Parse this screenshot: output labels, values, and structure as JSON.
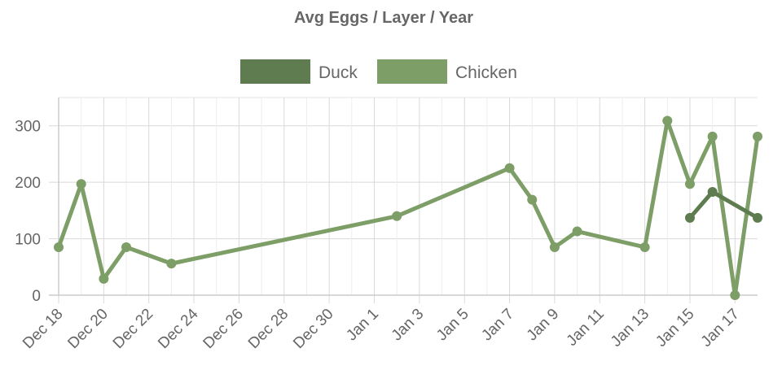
{
  "chart_data": {
    "type": "line",
    "title": "Avg Eggs / Layer / Year",
    "xlabel": "",
    "ylabel": "",
    "ylim": [
      0,
      350
    ],
    "y_ticks": [
      0,
      100,
      200,
      300
    ],
    "x_range": [
      "2020-12-18",
      "2021-01-18"
    ],
    "x_ticks": [
      {
        "date": "2020-12-18",
        "label": "Dec 18"
      },
      {
        "date": "2020-12-20",
        "label": "Dec 20"
      },
      {
        "date": "2020-12-22",
        "label": "Dec 22"
      },
      {
        "date": "2020-12-24",
        "label": "Dec 24"
      },
      {
        "date": "2020-12-26",
        "label": "Dec 26"
      },
      {
        "date": "2020-12-28",
        "label": "Dec 28"
      },
      {
        "date": "2020-12-30",
        "label": "Dec 30"
      },
      {
        "date": "2021-01-01",
        "label": "Jan 1"
      },
      {
        "date": "2021-01-03",
        "label": "Jan 3"
      },
      {
        "date": "2021-01-05",
        "label": "Jan 5"
      },
      {
        "date": "2021-01-07",
        "label": "Jan 7"
      },
      {
        "date": "2021-01-09",
        "label": "Jan 9"
      },
      {
        "date": "2021-01-11",
        "label": "Jan 11"
      },
      {
        "date": "2021-01-13",
        "label": "Jan 13"
      },
      {
        "date": "2021-01-15",
        "label": "Jan 15"
      },
      {
        "date": "2021-01-17",
        "label": "Jan 17"
      }
    ],
    "grid": true,
    "legend_position": "top-center",
    "series": [
      {
        "name": "Duck",
        "color": "#5f7c50",
        "points": [
          {
            "x": "2021-01-15",
            "y": 137
          },
          {
            "x": "2021-01-16",
            "y": 183
          },
          {
            "x": "2021-01-18",
            "y": 137
          }
        ]
      },
      {
        "name": "Chicken",
        "color": "#7d9e66",
        "points": [
          {
            "x": "2020-12-18",
            "y": 85
          },
          {
            "x": "2020-12-19",
            "y": 197
          },
          {
            "x": "2020-12-20",
            "y": 29
          },
          {
            "x": "2020-12-21",
            "y": 85
          },
          {
            "x": "2020-12-23",
            "y": 56
          },
          {
            "x": "2021-01-02",
            "y": 140
          },
          {
            "x": "2021-01-07",
            "y": 225
          },
          {
            "x": "2021-01-08",
            "y": 169
          },
          {
            "x": "2021-01-09",
            "y": 85
          },
          {
            "x": "2021-01-10",
            "y": 113
          },
          {
            "x": "2021-01-13",
            "y": 85
          },
          {
            "x": "2021-01-14",
            "y": 309
          },
          {
            "x": "2021-01-15",
            "y": 197
          },
          {
            "x": "2021-01-16",
            "y": 281
          },
          {
            "x": "2021-01-17",
            "y": 0
          },
          {
            "x": "2021-01-18",
            "y": 281
          }
        ]
      }
    ]
  }
}
